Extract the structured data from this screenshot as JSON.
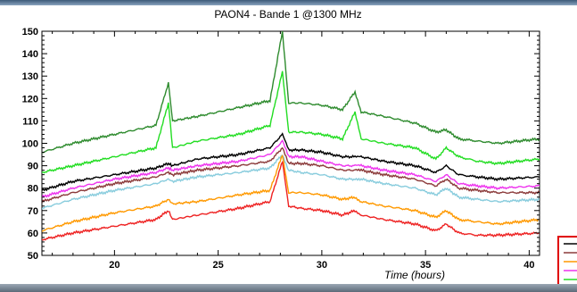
{
  "chart_data": {
    "type": "line",
    "title": "PAON4 - Bande 1 @1300 MHz",
    "xlabel": "Time (hours)",
    "ylabel": "",
    "xlim": [
      16.5,
      40.5
    ],
    "ylim": [
      50,
      150
    ],
    "x_ticks": [
      20,
      25,
      30,
      35,
      40
    ],
    "y_ticks": [
      50,
      60,
      70,
      80,
      90,
      100,
      110,
      120,
      130,
      140,
      150
    ],
    "grid": false,
    "legend": {
      "placement": "bottom-right"
    },
    "x": [
      16.5,
      18,
      20,
      22,
      22.6,
      22.8,
      24,
      26,
      27.5,
      28.1,
      28.4,
      29,
      30,
      31,
      31.6,
      31.9,
      33,
      34.5,
      35.5,
      36,
      36.6,
      37.5,
      38.5,
      40.5
    ],
    "series": [
      {
        "color": "#2e8b2e",
        "values": [
          96,
          100,
          104,
          108,
          127,
          110,
          112,
          116,
          119,
          150,
          118,
          118,
          117,
          115,
          123,
          114,
          112,
          109,
          105,
          106,
          102,
          101,
          100,
          102
        ]
      },
      {
        "color": "#22dd22",
        "values": [
          87,
          90,
          94,
          98,
          118,
          98,
          101,
          104,
          108,
          132,
          105,
          105,
          104,
          102,
          114,
          102,
          100,
          98,
          93,
          98,
          94,
          92,
          91,
          93
        ]
      },
      {
        "color": "#000000",
        "values": [
          79,
          83,
          86,
          89,
          91,
          90,
          93,
          95,
          98,
          104,
          97,
          97,
          96,
          94,
          94,
          94,
          92,
          90,
          87,
          90,
          86,
          85,
          84,
          85
        ]
      },
      {
        "color": "#ee33ee",
        "values": [
          76,
          80,
          84,
          87,
          89,
          88,
          90,
          92,
          95,
          101,
          94,
          94,
          92,
          90,
          90,
          90,
          88,
          86,
          83,
          86,
          82,
          81,
          80,
          81
        ]
      },
      {
        "color": "#8b3a3a",
        "values": [
          74,
          78,
          82,
          85,
          87,
          86,
          88,
          90,
          92,
          98,
          91,
          91,
          90,
          88,
          88,
          88,
          86,
          84,
          81,
          84,
          80,
          79,
          78,
          78
        ]
      },
      {
        "color": "#88ccdd",
        "values": [
          71,
          75,
          79,
          82,
          84,
          83,
          85,
          87,
          89,
          95,
          88,
          87,
          86,
          84,
          84,
          84,
          82,
          80,
          77,
          80,
          76,
          75,
          74,
          75
        ]
      },
      {
        "color": "#ff9900",
        "values": [
          61,
          65,
          69,
          72,
          75,
          73,
          74,
          77,
          79,
          95,
          78,
          78,
          77,
          75,
          76,
          74,
          72,
          70,
          67,
          70,
          66,
          65,
          64,
          66
        ]
      },
      {
        "color": "#ee2222",
        "values": [
          57,
          60,
          63,
          66,
          70,
          66,
          68,
          71,
          74,
          92,
          72,
          71,
          70,
          68,
          70,
          68,
          66,
          64,
          61,
          64,
          60,
          59,
          59,
          60
        ]
      }
    ],
    "legend_entries": [
      {
        "color": "#000000"
      },
      {
        "color": "#8b3a3a"
      },
      {
        "color": "#ff9900"
      },
      {
        "color": "#ee33ee"
      },
      {
        "color": "#22dd22"
      }
    ]
  }
}
